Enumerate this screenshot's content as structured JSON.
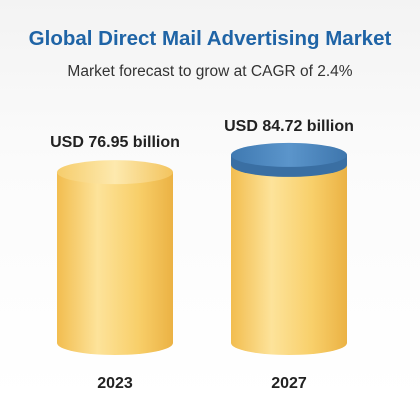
{
  "header": {
    "title": "Global Direct Mail Advertising Market",
    "subtitle": "Market forecast to grow at CAGR of 2.4%"
  },
  "colors": {
    "title": "#1f64a6",
    "cylinder_light": "#fde39a",
    "cylinder_mid": "#f7c95c",
    "cylinder_dark": "#eab042",
    "top_blue": "#4f89bf",
    "top_blue_dark": "#3a6fa3"
  },
  "chart_data": {
    "type": "bar",
    "style": "cylinder",
    "title": "Global Direct Mail Advertising Market",
    "subtitle": "Market forecast to grow at CAGR of 2.4%",
    "categories": [
      "2023",
      "2027"
    ],
    "values": [
      76.95,
      84.72
    ],
    "unit": "USD billion",
    "data_labels": [
      "USD 76.95 billion",
      "USD 84.72 billion"
    ],
    "grid": false,
    "legend": "none"
  }
}
